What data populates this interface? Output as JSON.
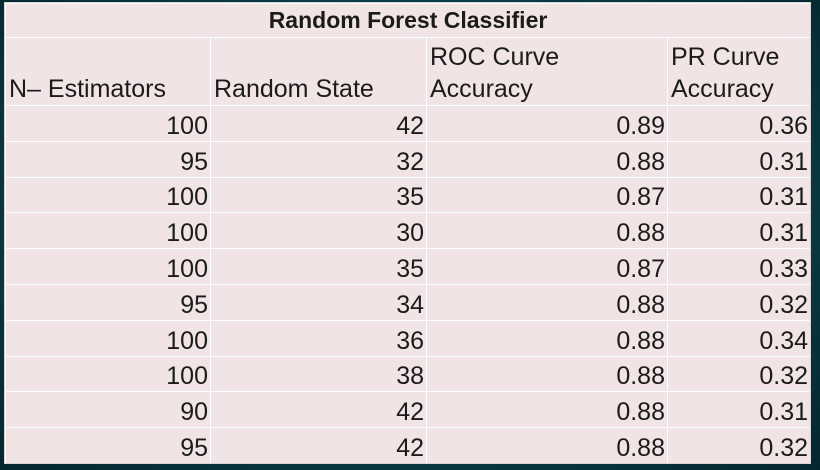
{
  "chart_data": {
    "type": "table",
    "title": "Random Forest Classifier",
    "columns": [
      "N– Estimators",
      "Random State",
      "ROC Curve Accuracy",
      "PR Curve Accuracy"
    ],
    "rows": [
      [
        "100",
        "42",
        "0.89",
        "0.36"
      ],
      [
        "95",
        "32",
        "0.88",
        "0.31"
      ],
      [
        "100",
        "35",
        "0.87",
        "0.31"
      ],
      [
        "100",
        "30",
        "0.88",
        "0.31"
      ],
      [
        "100",
        "35",
        "0.87",
        "0.33"
      ],
      [
        "95",
        "34",
        "0.88",
        "0.32"
      ],
      [
        "100",
        "36",
        "0.88",
        "0.34"
      ],
      [
        "100",
        "38",
        "0.88",
        "0.32"
      ],
      [
        "90",
        "42",
        "0.88",
        "0.31"
      ],
      [
        "95",
        "42",
        "0.88",
        "0.32"
      ]
    ]
  },
  "colors": {
    "table_fill": "#f1e4e4",
    "grid_line": "#ffffff",
    "background": "#0a4850"
  }
}
